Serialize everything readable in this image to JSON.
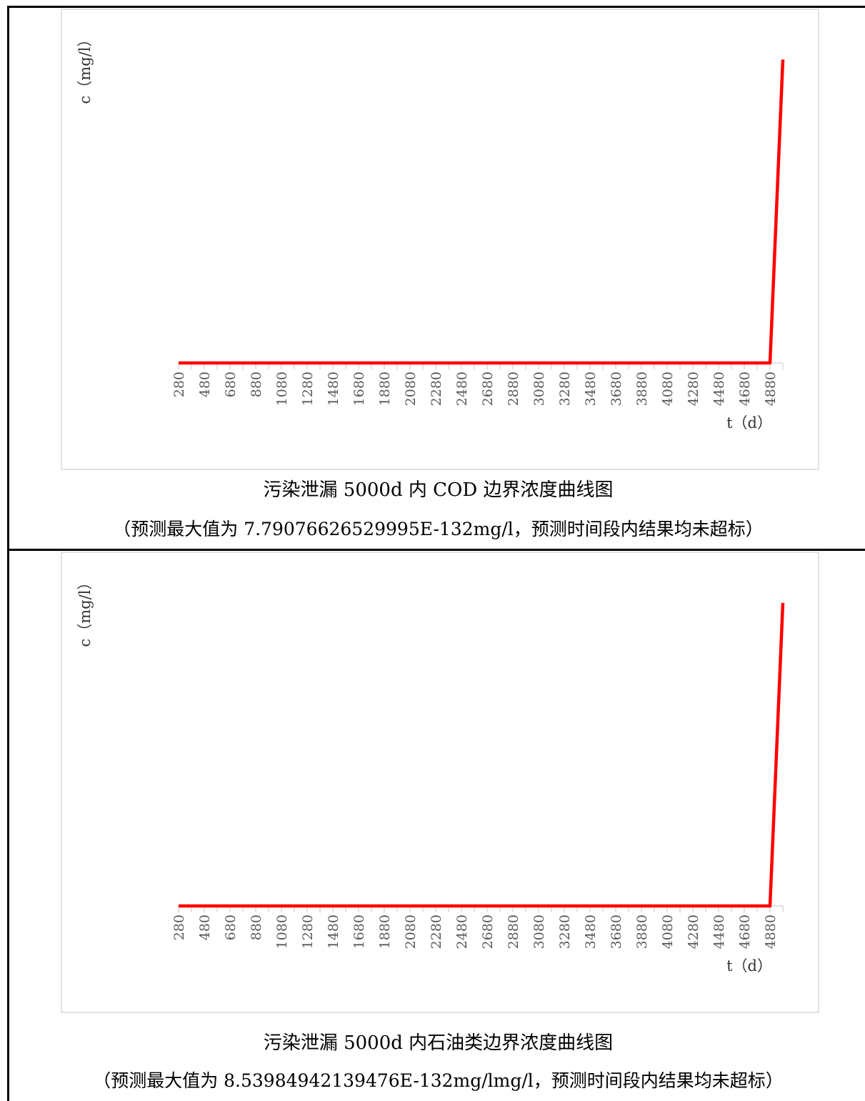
{
  "chart_data": [
    {
      "type": "line",
      "title": "污染泄漏 5000d 内 COD 边界浓度曲线图",
      "subtitle": "（预测最大值为 7.79076626529995E-132mg/l，预测时间段内结果均未超标）",
      "xlabel": "t（d）",
      "ylabel": "c（mg/l）",
      "x_ticks": [
        280,
        480,
        680,
        880,
        1080,
        1280,
        1480,
        1680,
        1880,
        2080,
        2280,
        2480,
        2680,
        2880,
        3080,
        3280,
        3480,
        3680,
        3880,
        4080,
        4280,
        4480,
        4680,
        4880
      ],
      "xlim": [
        280,
        4980
      ],
      "ylim": [
        0,
        8.2e-132
      ],
      "series": [
        {
          "color": "#ff0000",
          "points": [
            [
              280,
              0
            ],
            [
              4880,
              0
            ],
            [
              4980,
              7.79076626529995e-132
            ]
          ]
        }
      ]
    },
    {
      "type": "line",
      "title": "污染泄漏 5000d 内石油类边界浓度曲线图",
      "subtitle": "（预测最大值为 8.53984942139476E-132mg/lmg/l，预测时间段内结果均未超标）",
      "xlabel": "t（d）",
      "ylabel": "c（mg/l）",
      "x_ticks": [
        280,
        480,
        680,
        880,
        1080,
        1280,
        1480,
        1680,
        1880,
        2080,
        2280,
        2480,
        2680,
        2880,
        3080,
        3280,
        3480,
        3680,
        3880,
        4080,
        4280,
        4480,
        4680,
        4880
      ],
      "xlim": [
        280,
        4980
      ],
      "ylim": [
        0,
        9e-132
      ],
      "series": [
        {
          "color": "#ff0000",
          "points": [
            [
              280,
              0
            ],
            [
              4880,
              0
            ],
            [
              4980,
              8.53984942139476e-132
            ]
          ]
        }
      ]
    }
  ]
}
